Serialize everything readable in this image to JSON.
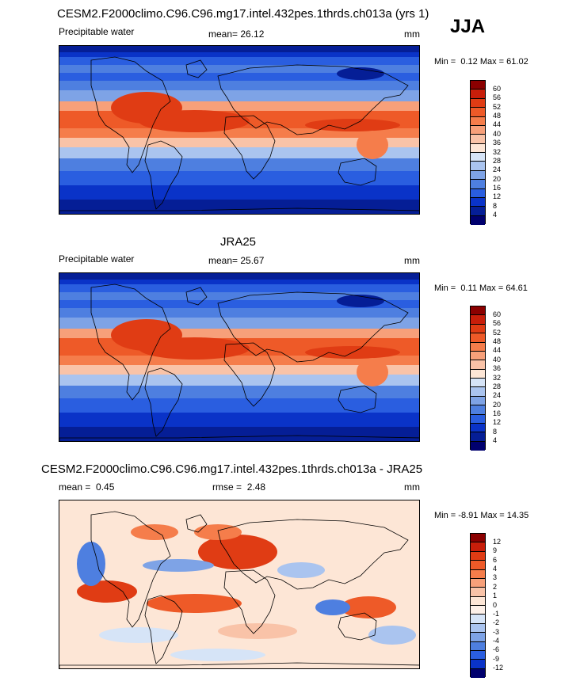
{
  "season": "JJA",
  "panels": [
    {
      "title": "CESM2.F2000climo.C96.C96.mg17.intel.432pes.1thrds.ch013a (yrs 1)",
      "left_label": "Precipitable water",
      "mean_label": "mean=",
      "mean_value": "26.12",
      "stat2_label": "",
      "stat2_value": "",
      "units": "mm",
      "min_label": "Min =",
      "min_value": "0.12",
      "max_label": "Max =",
      "max_value": "61.02",
      "colorbar": {
        "levels": [
          "60",
          "56",
          "52",
          "48",
          "44",
          "40",
          "36",
          "32",
          "28",
          "24",
          "20",
          "16",
          "12",
          "8",
          "4"
        ],
        "colors": [
          "#8b0000",
          "#c81e0a",
          "#e03c14",
          "#ee5a28",
          "#f57d4b",
          "#f7a07a",
          "#f9c3a8",
          "#fde6d6",
          "#d6e4f7",
          "#aac4ef",
          "#7ea3e6",
          "#4e7fe0",
          "#2a5ee0",
          "#0a33c8",
          "#051e96",
          "#00006e"
        ]
      },
      "field_style": "pw"
    },
    {
      "title": "JRA25",
      "left_label": "Precipitable water",
      "mean_label": "mean=",
      "mean_value": "25.67",
      "stat2_label": "",
      "stat2_value": "",
      "units": "mm",
      "min_label": "Min =",
      "min_value": "0.11",
      "max_label": "Max =",
      "max_value": "64.61",
      "colorbar": {
        "levels": [
          "60",
          "56",
          "52",
          "48",
          "44",
          "40",
          "36",
          "32",
          "28",
          "24",
          "20",
          "16",
          "12",
          "8",
          "4"
        ],
        "colors": [
          "#8b0000",
          "#c81e0a",
          "#e03c14",
          "#ee5a28",
          "#f57d4b",
          "#f7a07a",
          "#f9c3a8",
          "#fde6d6",
          "#d6e4f7",
          "#aac4ef",
          "#7ea3e6",
          "#4e7fe0",
          "#2a5ee0",
          "#0a33c8",
          "#051e96",
          "#00006e"
        ]
      },
      "field_style": "pw"
    },
    {
      "title": "CESM2.F2000climo.C96.C96.mg17.intel.432pes.1thrds.ch013a - JRA25",
      "left_label": "",
      "mean_label": "mean =",
      "mean_value": "0.45",
      "stat2_label": "rmse =",
      "stat2_value": "2.48",
      "units": "mm",
      "min_label": "Min =",
      "min_value": "-8.91",
      "max_label": "Max =",
      "max_value": "14.35",
      "colorbar": {
        "levels": [
          "12",
          "9",
          "6",
          "4",
          "3",
          "2",
          "1",
          "0",
          "-1",
          "-2",
          "-3",
          "-4",
          "-6",
          "-9",
          "-12"
        ],
        "colors": [
          "#8b0000",
          "#c81e0a",
          "#e03c14",
          "#ee5a28",
          "#f57d4b",
          "#f7a07a",
          "#f9c3a8",
          "#fde6d6",
          "#fdf0e8",
          "#d6e4f7",
          "#aac4ef",
          "#7ea3e6",
          "#4e7fe0",
          "#2a5ee0",
          "#0a33c8",
          "#00006e"
        ]
      },
      "field_style": "diff"
    }
  ],
  "chart_data": [
    {
      "type": "heatmap",
      "title": "CESM2.F2000climo.C96.C96.mg17.intel.432pes.1thrds.ch013a (yrs 1)",
      "variable": "Precipitable water",
      "units": "mm",
      "mean": 26.12,
      "min": 0.12,
      "max": 61.02,
      "contour_levels": [
        4,
        8,
        12,
        16,
        20,
        24,
        28,
        32,
        36,
        40,
        44,
        48,
        52,
        56,
        60
      ]
    },
    {
      "type": "heatmap",
      "title": "JRA25",
      "variable": "Precipitable water",
      "units": "mm",
      "mean": 25.67,
      "min": 0.11,
      "max": 64.61,
      "contour_levels": [
        4,
        8,
        12,
        16,
        20,
        24,
        28,
        32,
        36,
        40,
        44,
        48,
        52,
        56,
        60
      ]
    },
    {
      "type": "heatmap",
      "title": "CESM2.F2000climo.C96.C96.mg17.intel.432pes.1thrds.ch013a - JRA25",
      "units": "mm",
      "mean": 0.45,
      "rmse": 2.48,
      "min": -8.91,
      "max": 14.35,
      "contour_levels": [
        -12,
        -9,
        -6,
        -4,
        -3,
        -2,
        -1,
        0,
        1,
        2,
        3,
        4,
        6,
        9,
        12
      ]
    }
  ]
}
